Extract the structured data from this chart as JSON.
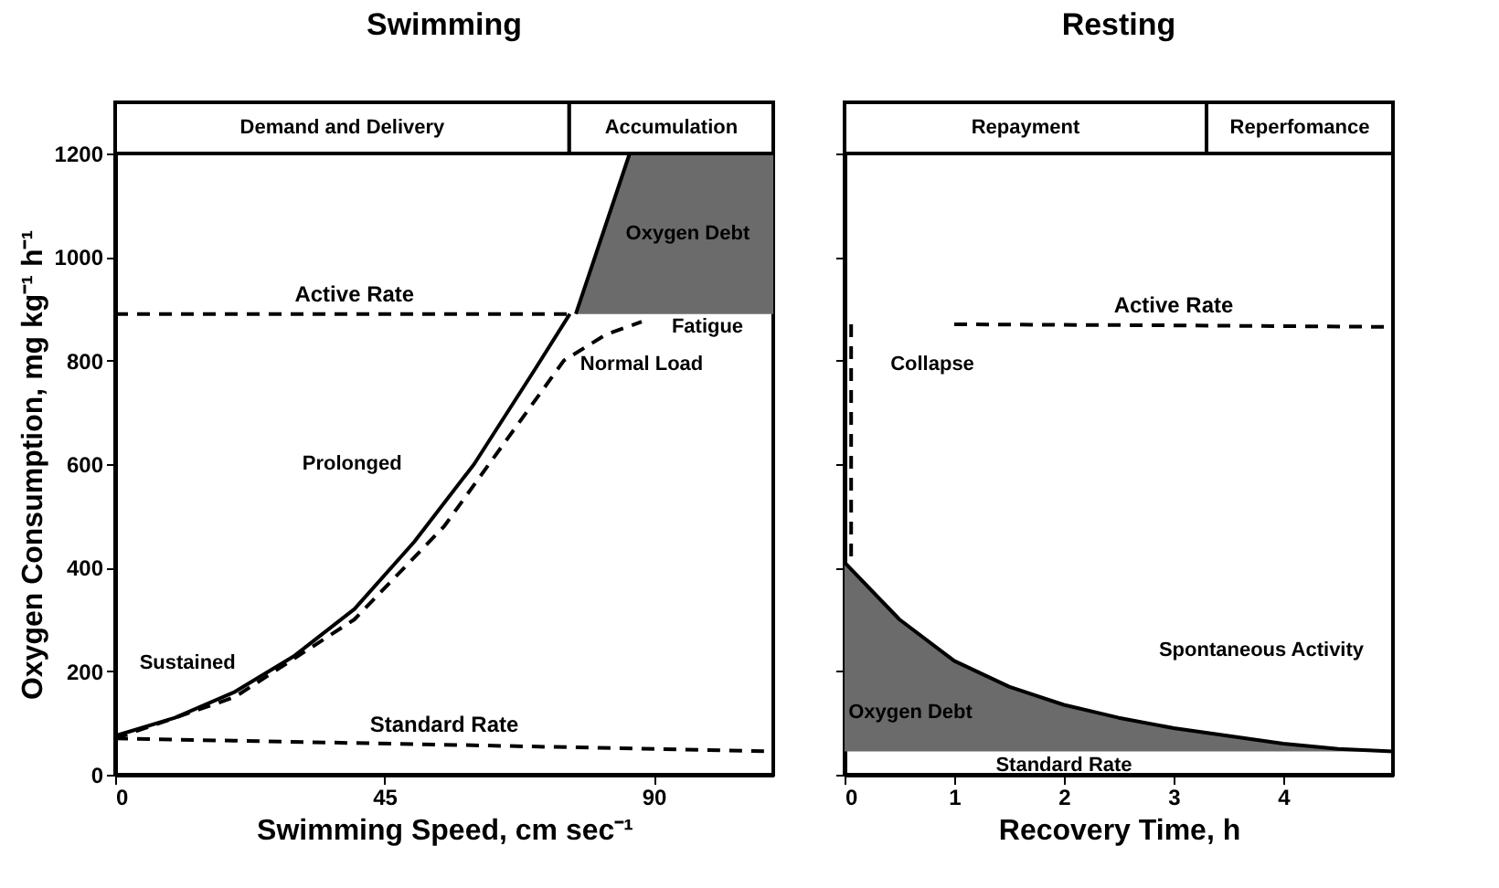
{
  "chart_data": [
    {
      "type": "line",
      "title": "Swimming",
      "xlabel": "Swimming Speed, cm sec⁻¹",
      "ylabel": "Oxygen Consumption, mg kg⁻¹ h⁻¹",
      "xlim": [
        0,
        110
      ],
      "xticks": [
        0,
        45,
        90
      ],
      "ylim": [
        0,
        1200
      ],
      "yticks": [
        0,
        200,
        400,
        600,
        800,
        1000,
        1200
      ],
      "grid": false,
      "series": [
        {
          "color": "#000000",
          "line_style": "solid",
          "x": [
            77,
            86,
            110
          ],
          "values": [
            890,
            1200,
            1200
          ],
          "upper": [
            890,
            1200,
            1200
          ],
          "lower": [
            890,
            890,
            890
          ]
        },
        {
          "color": "#000000",
          "line_style": "solid",
          "x": [
            0,
            10,
            20,
            30,
            40,
            50,
            60,
            70,
            76
          ],
          "values": [
            75,
            110,
            160,
            230,
            320,
            450,
            600,
            780,
            890
          ]
        },
        {
          "color": "#000000",
          "line_style": "dashed",
          "x": [
            0,
            20,
            40,
            55,
            65,
            75,
            82,
            88
          ],
          "values": [
            70,
            150,
            300,
            480,
            640,
            800,
            850,
            875
          ]
        },
        {
          "name": "Active Rate",
          "color": "#000000",
          "line_style": "dashed",
          "x": [
            0,
            40,
            77
          ],
          "values": [
            890,
            890,
            890
          ]
        },
        {
          "name": "Standard Rate",
          "color": "#000000",
          "line_style": "dashed",
          "x": [
            0,
            55,
            110
          ],
          "values": [
            70,
            58,
            45
          ]
        }
      ],
      "annotations": [
        "Demand and Delivery",
        "Accumulation",
        "Sustained",
        "Prolonged",
        "Normal Load",
        "Fatigue",
        "Oxygen Debt"
      ]
    },
    {
      "type": "line",
      "title": "Resting",
      "xlabel": "Recovery Time, h",
      "xlim": [
        0,
        5
      ],
      "xticks": [
        0,
        1,
        2,
        3,
        4
      ],
      "ylim": [
        0,
        1200
      ],
      "yticks": [
        0,
        200,
        400,
        600,
        800,
        1000,
        1200
      ],
      "tick_labels": "x",
      "grid": false,
      "series": [
        {
          "color": "#000000",
          "line_style": "solid",
          "x": [
            0,
            0.5,
            1,
            1.5,
            2,
            2.5,
            3,
            3.5,
            4,
            4.5,
            5
          ],
          "values": [
            410,
            300,
            220,
            170,
            135,
            110,
            90,
            75,
            60,
            50,
            45
          ],
          "upper": [
            410,
            300,
            220,
            170,
            135,
            110,
            90,
            75,
            60,
            50,
            45
          ],
          "lower": [
            45,
            45,
            45,
            45,
            45,
            45,
            45,
            45,
            45,
            45,
            45
          ]
        },
        {
          "color": "#000000",
          "line_style": "dashed",
          "x": [
            0.06,
            0.06
          ],
          "values": [
            870,
            410
          ]
        },
        {
          "name": "Active Rate",
          "color": "#000000",
          "line_style": "dashed",
          "x": [
            1,
            3,
            5
          ],
          "values": [
            870,
            868,
            865
          ]
        }
      ],
      "annotations": [
        "Repayment",
        "Reperfomance",
        "Collapse",
        "Spontaneous Activity",
        "Oxygen Debt",
        "Standard Rate"
      ]
    }
  ]
}
